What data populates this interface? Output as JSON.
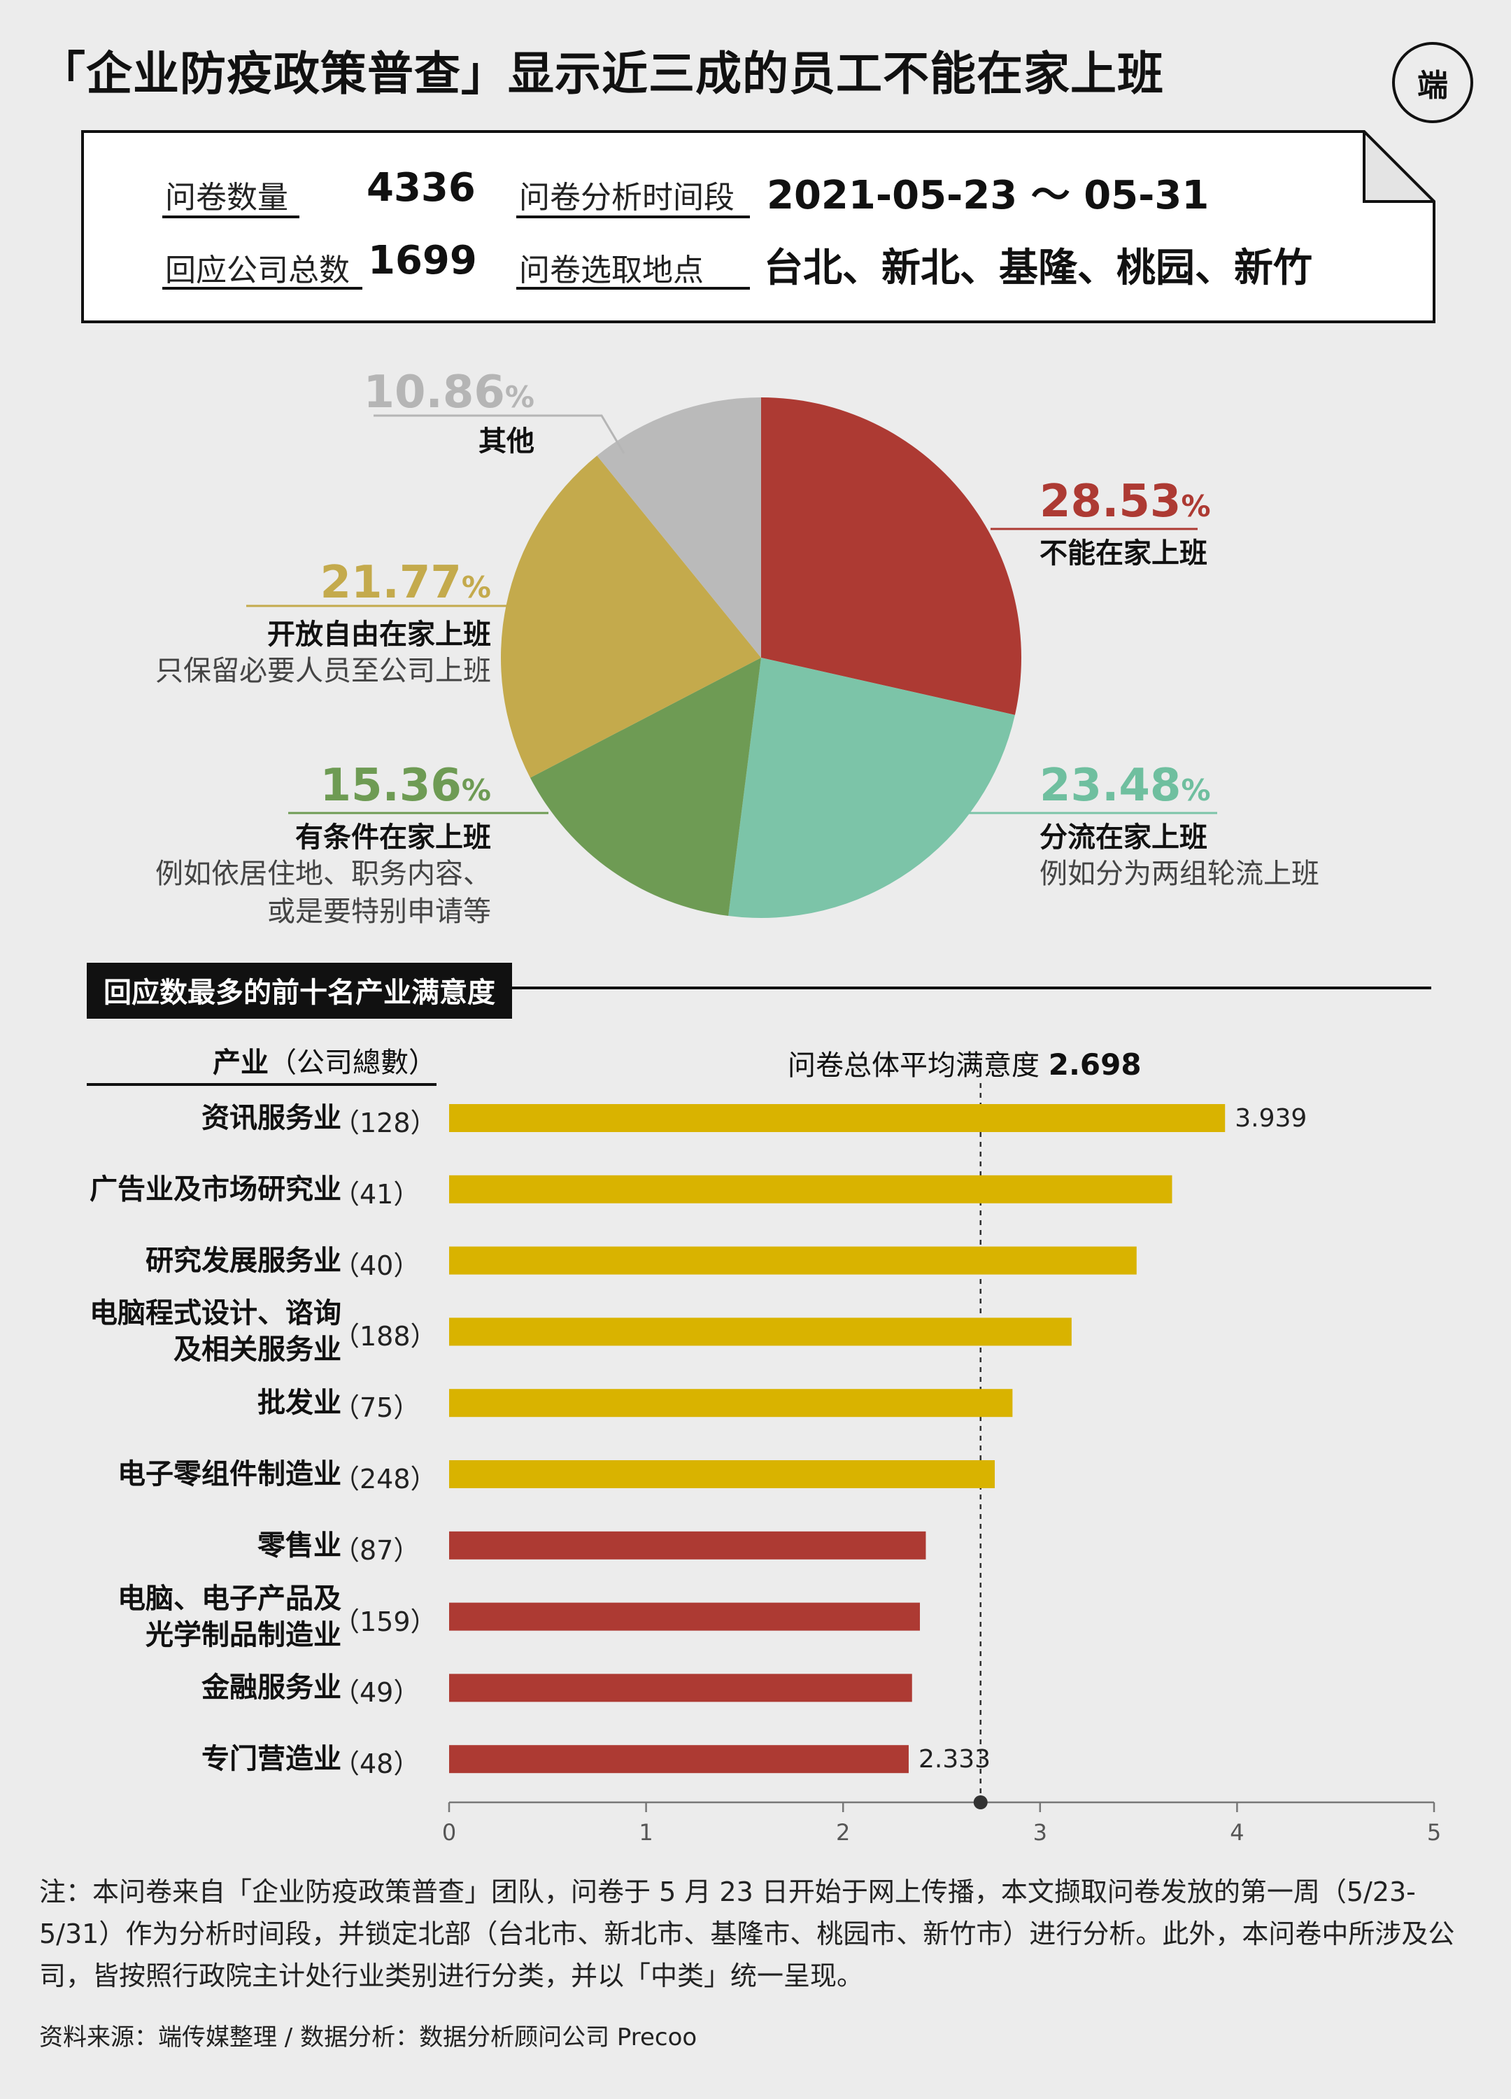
{
  "title": "「企业防疫政策普查」显示近三成的员工不能在家上班",
  "logo_text": "端",
  "info": {
    "survey_count_label": "问卷数量",
    "survey_count": "4336",
    "companies_label": "回应公司总数",
    "companies": "1699",
    "period_label": "问卷分析时间段",
    "period": "2021-05-23 ～ 05-31",
    "location_label": "问卷选取地点",
    "location": "台北、新北、基隆、桃园、新竹"
  },
  "pie": {
    "slices": [
      {
        "pct": "28.53",
        "value": 28.53,
        "name": "不能在家上班",
        "desc": [],
        "color": "#ad3a33"
      },
      {
        "pct": "23.48",
        "value": 23.48,
        "name": "分流在家上班",
        "desc": [
          "例如分为两组轮流上班"
        ],
        "color": "#7cc4a8"
      },
      {
        "pct": "15.36",
        "value": 15.36,
        "name": "有条件在家上班",
        "desc": [
          "例如依居住地、职务内容、",
          "或是要特别申请等"
        ],
        "color": "#6e9b54"
      },
      {
        "pct": "21.77",
        "value": 21.77,
        "name": "开放自由在家上班",
        "desc": [
          "只保留必要人员至公司上班"
        ],
        "color": "#c4aa4c"
      },
      {
        "pct": "10.86",
        "value": 10.86,
        "name": "其他",
        "desc": [],
        "color": "#bababa"
      }
    ],
    "pct_sign": "%"
  },
  "section_title": "回应数最多的前十名产业满意度",
  "bar_header": {
    "label": "产业",
    "sub": "（公司總數）"
  },
  "avg": {
    "label": "问卷总体平均满意度",
    "value": "2.698",
    "number": 2.698
  },
  "chart_data": {
    "type": "bar",
    "orientation": "horizontal",
    "title": "回应数最多的前十名产业满意度",
    "categories": [
      [
        "资讯服务业"
      ],
      [
        "广告业及市场研究业"
      ],
      [
        "研究发展服务业"
      ],
      [
        "电脑程式设计、谘询",
        "及相关服务业"
      ],
      [
        "批发业"
      ],
      [
        "电子零组件制造业"
      ],
      [
        "零售业"
      ],
      [
        "电脑、电子产品及",
        "光学制品制造业"
      ],
      [
        "金融服务业"
      ],
      [
        "专门营造业"
      ]
    ],
    "counts": [
      "（128）",
      "（41）",
      "（40）",
      "（188）",
      "（75）",
      "（248）",
      "（87）",
      "（159）",
      "（49）",
      "（48）"
    ],
    "values": [
      3.939,
      3.67,
      3.49,
      3.16,
      2.86,
      2.77,
      2.42,
      2.39,
      2.35,
      2.333
    ],
    "value_labels": [
      "3.939",
      "",
      "",
      "",
      "",
      "",
      "",
      "",
      "",
      "2.333"
    ],
    "xlim": [
      0,
      5
    ],
    "xticks": [
      "0",
      "1",
      "2",
      "3",
      "4",
      "5"
    ],
    "colors": {
      "above_avg": "#d9b300",
      "below_avg": "#ad3a33"
    },
    "reference_line": 2.698
  },
  "footnote": "注：本问卷来自「企业防疫政策普查」团队，问卷于 5 月 23 日开始于网上传播，本文撷取问卷发放的第一周（5/23-5/31）作为分析时间段，并锁定北部（台北市、新北市、基隆市、桃园市、新竹市）进行分析。此外，本问卷中所涉及公司，皆按照行政院主计处行业类别进行分类，并以「中类」统一呈现。",
  "source": "资料来源：端传媒整理 / 数据分析：数据分析顾问公司 Precoo"
}
